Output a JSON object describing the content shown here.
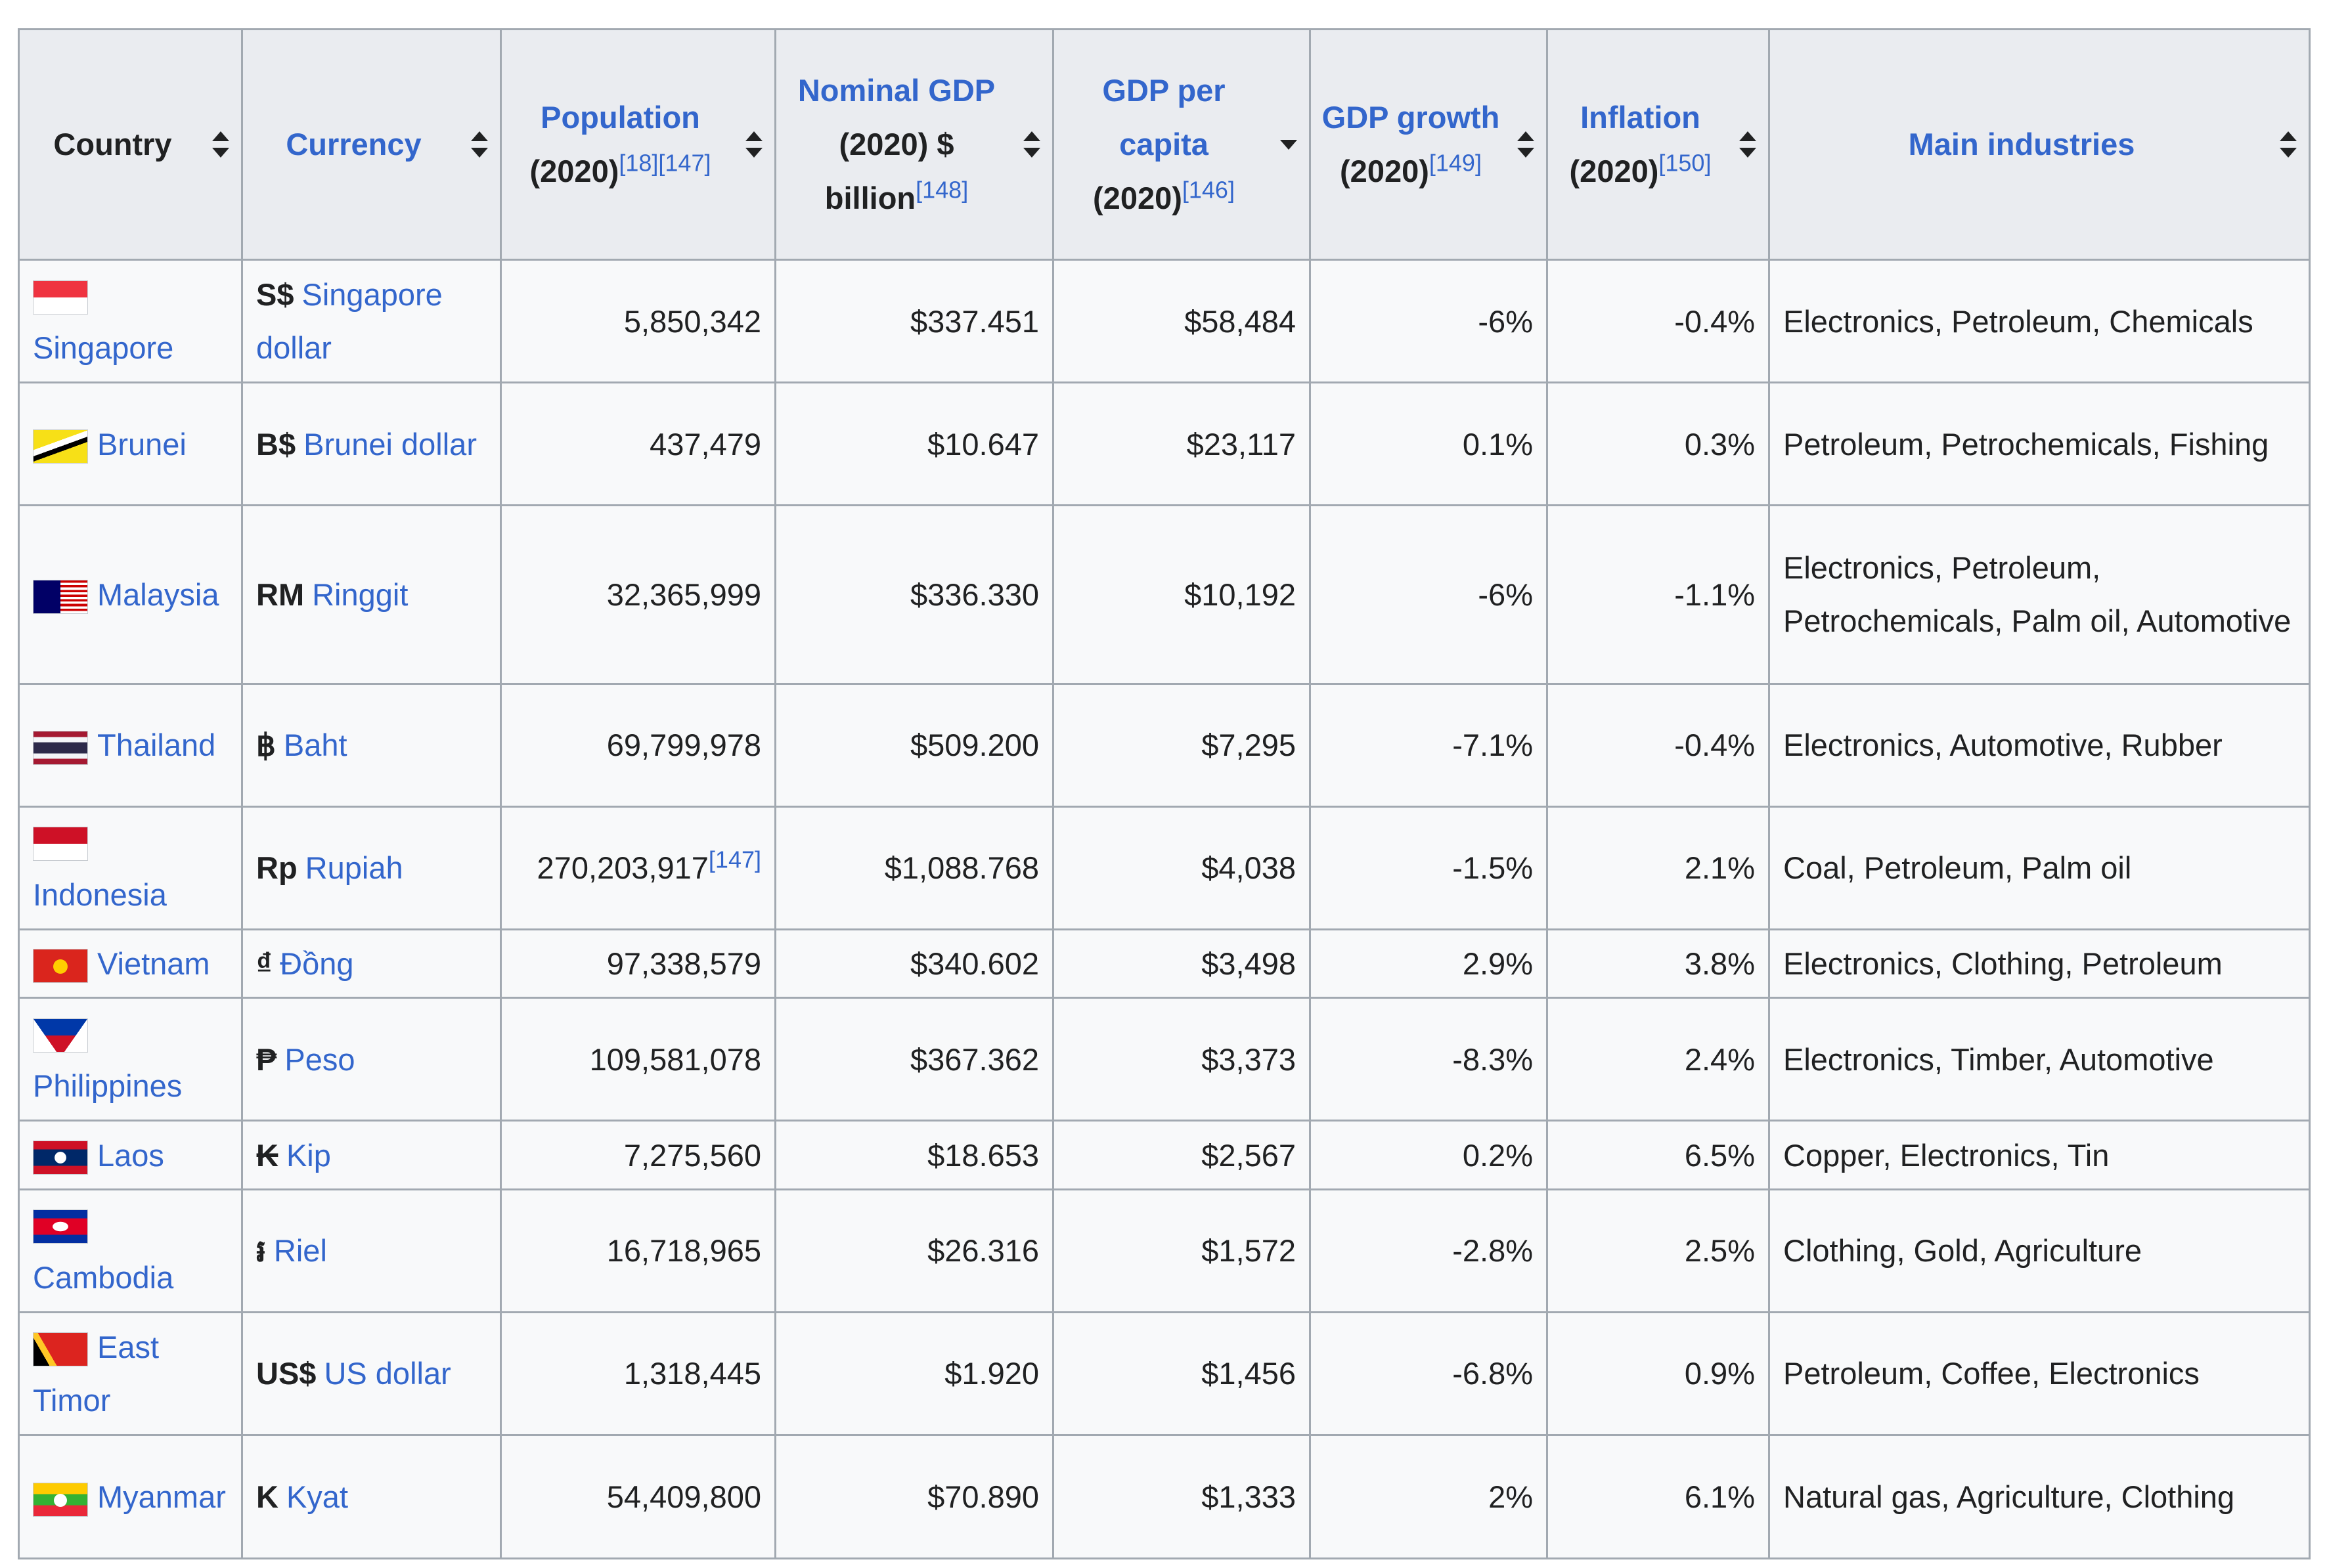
{
  "columns": [
    {
      "label": "Country",
      "sub": "",
      "refs": ""
    },
    {
      "label": "Currency",
      "sub": "",
      "refs": ""
    },
    {
      "label": "Population",
      "sub": "(2020)",
      "refs": "[18][147]"
    },
    {
      "label": "Nominal GDP",
      "sub": "(2020) $ billion",
      "refs": "[148]"
    },
    {
      "label": "GDP per capita",
      "sub": "(2020)",
      "refs": "[146]"
    },
    {
      "label": "GDP growth",
      "sub": "(2020)",
      "refs": "[149]"
    },
    {
      "label": "Inflation",
      "sub": "(2020)",
      "refs": "[150]"
    },
    {
      "label": "Main industries",
      "sub": "",
      "refs": ""
    }
  ],
  "rows": [
    {
      "country": "Singapore",
      "flag": "singapore-flag",
      "currency_symbol": "S$",
      "currency": "Singapore dollar",
      "population": "5,850,342",
      "population_ref": "",
      "nominal_gdp": "$337.451",
      "gdp_per_capita": "$58,484",
      "gdp_growth": "-6%",
      "inflation": "-0.4%",
      "industries": "Electronics, Petroleum, Chemicals"
    },
    {
      "country": "Brunei",
      "flag": "brunei-flag",
      "currency_symbol": "B$",
      "currency": "Brunei dollar",
      "population": "437,479",
      "population_ref": "",
      "nominal_gdp": "$10.647",
      "gdp_per_capita": "$23,117",
      "gdp_growth": "0.1%",
      "inflation": "0.3%",
      "industries": "Petroleum, Petrochemicals, Fishing"
    },
    {
      "country": "Malaysia",
      "flag": "malaysia-flag",
      "currency_symbol": "RM",
      "currency": "Ringgit",
      "population": "32,365,999",
      "population_ref": "",
      "nominal_gdp": "$336.330",
      "gdp_per_capita": "$10,192",
      "gdp_growth": "-6%",
      "inflation": "-1.1%",
      "industries": "Electronics, Petroleum, Petrochemicals, Palm oil, Automotive"
    },
    {
      "country": "Thailand",
      "flag": "thailand-flag",
      "currency_symbol": "฿",
      "currency": "Baht",
      "population": "69,799,978",
      "population_ref": "",
      "nominal_gdp": "$509.200",
      "gdp_per_capita": "$7,295",
      "gdp_growth": "-7.1%",
      "inflation": "-0.4%",
      "industries": "Electronics, Automotive, Rubber"
    },
    {
      "country": "Indonesia",
      "flag": "indonesia-flag",
      "currency_symbol": "Rp",
      "currency": "Rupiah",
      "population": "270,203,917",
      "population_ref": "[147]",
      "nominal_gdp": "$1,088.768",
      "gdp_per_capita": "$4,038",
      "gdp_growth": "-1.5%",
      "inflation": "2.1%",
      "industries": "Coal, Petroleum, Palm oil"
    },
    {
      "country": "Vietnam",
      "flag": "vietnam-flag",
      "currency_symbol": "₫",
      "currency": "Đồng",
      "population": "97,338,579",
      "population_ref": "",
      "nominal_gdp": "$340.602",
      "gdp_per_capita": "$3,498",
      "gdp_growth": "2.9%",
      "inflation": "3.8%",
      "industries": "Electronics, Clothing, Petroleum"
    },
    {
      "country": "Philippines",
      "flag": "philippines-flag",
      "currency_symbol": "₱",
      "currency": "Peso",
      "population": "109,581,078",
      "population_ref": "",
      "nominal_gdp": "$367.362",
      "gdp_per_capita": "$3,373",
      "gdp_growth": "-8.3%",
      "inflation": "2.4%",
      "industries": "Electronics, Timber, Automotive"
    },
    {
      "country": "Laos",
      "flag": "laos-flag",
      "currency_symbol": "₭",
      "currency": "Kip",
      "population": "7,275,560",
      "population_ref": "",
      "nominal_gdp": "$18.653",
      "gdp_per_capita": "$2,567",
      "gdp_growth": "0.2%",
      "inflation": "6.5%",
      "industries": "Copper, Electronics, Tin"
    },
    {
      "country": "Cambodia",
      "flag": "cambodia-flag",
      "currency_symbol": "៛",
      "currency": "Riel",
      "population": "16,718,965",
      "population_ref": "",
      "nominal_gdp": "$26.316",
      "gdp_per_capita": "$1,572",
      "gdp_growth": "-2.8%",
      "inflation": "2.5%",
      "industries": "Clothing, Gold, Agriculture"
    },
    {
      "country": "East Timor",
      "flag": "east-timor-flag",
      "currency_symbol": "US$",
      "currency": "US dollar",
      "population": "1,318,445",
      "population_ref": "",
      "nominal_gdp": "$1.920",
      "gdp_per_capita": "$1,456",
      "gdp_growth": "-6.8%",
      "inflation": "0.9%",
      "industries": "Petroleum, Coffee, Electronics"
    },
    {
      "country": "Myanmar",
      "flag": "myanmar-flag",
      "currency_symbol": "K",
      "currency": "Kyat",
      "population": "54,409,800",
      "population_ref": "",
      "nominal_gdp": "$70.890",
      "gdp_per_capita": "$1,333",
      "gdp_growth": "2%",
      "inflation": "6.1%",
      "industries": "Natural gas, Agriculture, Clothing"
    }
  ]
}
